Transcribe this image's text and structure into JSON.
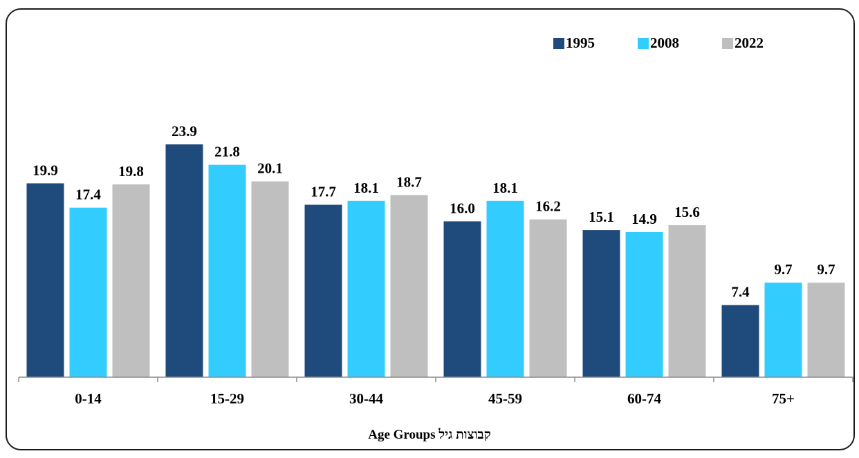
{
  "chart_data": {
    "type": "bar",
    "title": "",
    "xlabel": "Age Groups  קבוצות גיל",
    "ylabel": "",
    "categories": [
      "0-14",
      "15-29",
      "30-44",
      "45-59",
      "60-74",
      "75+"
    ],
    "series": [
      {
        "name": "1995",
        "color": "#1f4a7c",
        "values": [
          19.9,
          23.9,
          17.7,
          16.0,
          15.1,
          7.4
        ]
      },
      {
        "name": "2008",
        "color": "#33ccff",
        "values": [
          17.4,
          21.8,
          18.1,
          18.1,
          14.9,
          9.7
        ]
      },
      {
        "name": "2022",
        "color": "#bfbfbf",
        "values": [
          19.8,
          20.1,
          18.7,
          16.2,
          15.6,
          9.7
        ]
      }
    ],
    "value_labels": [
      [
        "19.9",
        "23.9",
        "17.7",
        "16.0",
        "15.1",
        "7.4"
      ],
      [
        "17.4",
        "21.8",
        "18.1",
        "18.1",
        "14.9",
        "9.7"
      ],
      [
        "19.8",
        "20.1",
        "18.7",
        "16.2",
        "15.6",
        "9.7"
      ]
    ],
    "ylim": [
      0,
      30
    ],
    "grid": false,
    "legend_position": "top-right"
  }
}
